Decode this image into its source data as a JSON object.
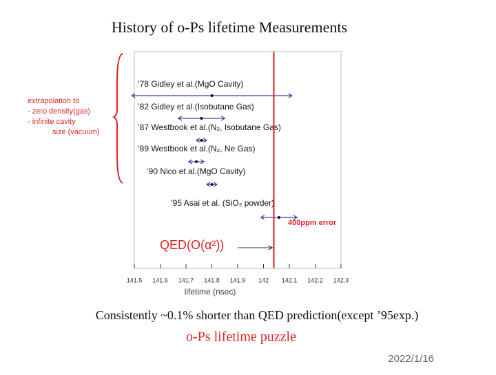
{
  "chart_data": {
    "type": "errorbar",
    "title": "History of o-Ps lifetime Measurements",
    "categories": [
      "’78 Gidley et al.(MgO Cavity)",
      "’82 Gidley et al.(Isobutane Gas)",
      "’87 Westbook et al.(N₂, Isobutane Gas)",
      "’89 Westbook et al.(N₂, Ne Gas)",
      "’90 Nico et al.(MgO Cavity)",
      "’95 Asai et al. (SiO₂ powder)"
    ],
    "values": [
      141.8,
      141.76,
      141.76,
      141.74,
      141.8,
      142.06
    ],
    "errors": [
      0.31,
      0.09,
      0.02,
      0.03,
      0.02,
      0.07
    ],
    "color": "#3344aa",
    "reference": {
      "label": "QED(O(α²))",
      "value": 142.04,
      "color": "#dd2222"
    },
    "error_note": "400ppm error",
    "xlabel": "lifetime (nsec)",
    "xlim": [
      141.5,
      142.3
    ],
    "xticks": [
      141.5,
      141.6,
      141.7,
      141.8,
      141.9,
      142,
      142.1,
      142.2,
      142.3
    ],
    "bracket_note": [
      "extrapolation to",
      "- zero density(gas)",
      "- infinite cavity",
      "size (vacuum)"
    ],
    "conclusion": "Consistently ~0.1% shorter than QED prediction(except ’95exp.)",
    "puzzle": "o-Ps lifetime puzzle",
    "date": "2022/1/16"
  }
}
